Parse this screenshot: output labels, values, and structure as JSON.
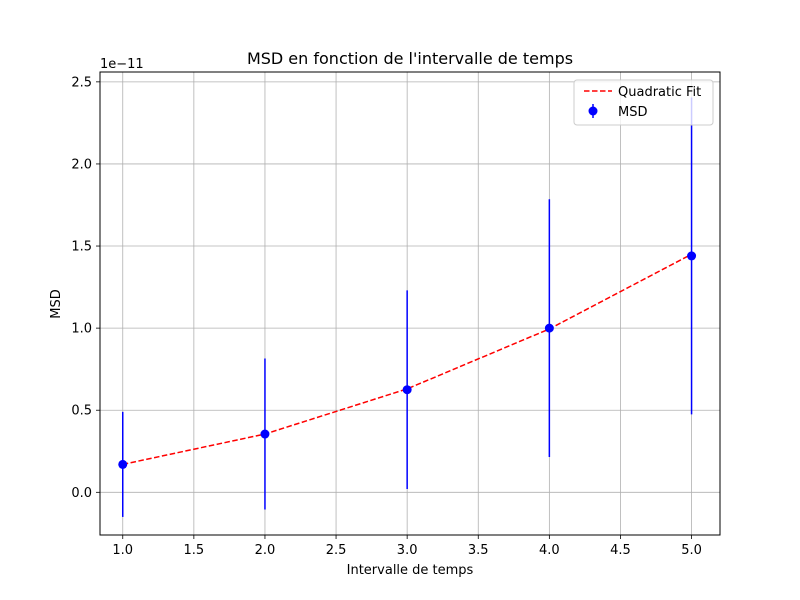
{
  "chart_data": {
    "type": "scatter",
    "title": "MSD en fonction de l'intervalle de temps",
    "xlabel": "Intervalle de temps",
    "ylabel": "MSD",
    "y_offset_text": "1e−11",
    "xlim": [
      0.84,
      5.2
    ],
    "ylim": [
      -0.26,
      2.56
    ],
    "x_ticks": [
      1.0,
      1.5,
      2.0,
      2.5,
      3.0,
      3.5,
      4.0,
      4.5,
      5.0
    ],
    "x_tick_labels": [
      "1.0",
      "1.5",
      "2.0",
      "2.5",
      "3.0",
      "3.5",
      "4.0",
      "4.5",
      "5.0"
    ],
    "y_ticks": [
      0.0,
      0.5,
      1.0,
      1.5,
      2.0,
      2.5
    ],
    "y_tick_labels": [
      "0.0",
      "0.5",
      "1.0",
      "1.5",
      "2.0",
      "2.5"
    ],
    "grid": true,
    "legend_position": "top-right",
    "series": [
      {
        "name": "Quadratic Fit",
        "kind": "line",
        "style": "dashed",
        "color": "#ff0000",
        "x": [
          1,
          2,
          3,
          4,
          5
        ],
        "y": [
          0.17,
          0.355,
          0.63,
          0.995,
          1.45
        ]
      },
      {
        "name": "MSD",
        "kind": "errorbar",
        "color": "#0000ff",
        "x": [
          1,
          2,
          3,
          4,
          5
        ],
        "y": [
          0.17,
          0.355,
          0.625,
          1.0,
          1.44
        ],
        "yerr": [
          0.32,
          0.46,
          0.605,
          0.785,
          0.965
        ]
      }
    ]
  }
}
